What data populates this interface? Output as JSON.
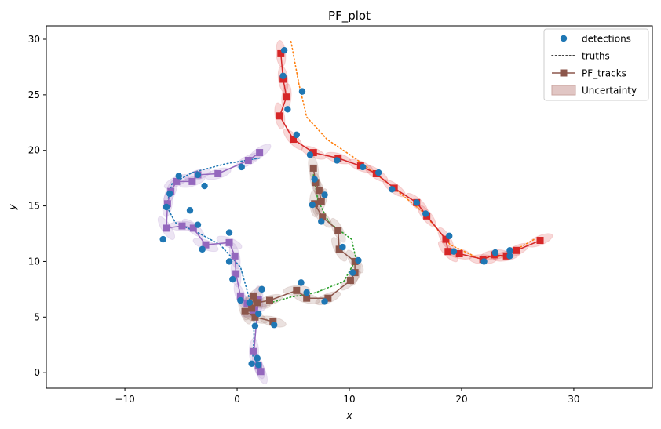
{
  "chart_data": {
    "type": "scatter",
    "title": "PF_plot",
    "xlabel": "x",
    "ylabel": "y",
    "xlim": [
      -17,
      37
    ],
    "ylim": [
      -1.4,
      31.2
    ],
    "xticks": [
      -10,
      0,
      10,
      20,
      30
    ],
    "yticks": [
      0,
      5,
      10,
      15,
      20,
      25,
      30
    ],
    "grid": false,
    "legend_position": "top-right",
    "legend": [
      {
        "label": "detections",
        "kind": "marker-dot",
        "color": "#1f77b4"
      },
      {
        "label": "truths",
        "kind": "dotted-line",
        "color": "#000000"
      },
      {
        "label": "PF_tracks",
        "kind": "line-square",
        "color": "#8c564b"
      },
      {
        "label": "Uncertainty",
        "kind": "patch",
        "color": "#d9b8b5"
      }
    ],
    "detections": [
      [
        4.2,
        29.0
      ],
      [
        4.1,
        26.7
      ],
      [
        5.8,
        25.3
      ],
      [
        4.5,
        23.7
      ],
      [
        5.3,
        21.4
      ],
      [
        6.5,
        19.6
      ],
      [
        8.9,
        19.1
      ],
      [
        11.2,
        18.5
      ],
      [
        12.6,
        18.0
      ],
      [
        13.8,
        16.5
      ],
      [
        16.0,
        15.3
      ],
      [
        16.8,
        14.3
      ],
      [
        18.9,
        12.3
      ],
      [
        19.3,
        10.9
      ],
      [
        22.0,
        10.0
      ],
      [
        23.0,
        10.8
      ],
      [
        24.3,
        10.5
      ],
      [
        24.3,
        11.0
      ],
      [
        0.4,
        18.5
      ],
      [
        -3.5,
        17.8
      ],
      [
        -5.2,
        17.7
      ],
      [
        -2.9,
        16.8
      ],
      [
        -6.0,
        16.1
      ],
      [
        -4.2,
        14.6
      ],
      [
        -6.3,
        14.9
      ],
      [
        -3.5,
        13.3
      ],
      [
        -6.6,
        12.0
      ],
      [
        -3.1,
        11.1
      ],
      [
        -0.7,
        12.6
      ],
      [
        -0.7,
        10.0
      ],
      [
        -0.4,
        8.4
      ],
      [
        0.3,
        6.5
      ],
      [
        1.1,
        6.3
      ],
      [
        2.2,
        7.5
      ],
      [
        1.9,
        5.3
      ],
      [
        1.6,
        4.2
      ],
      [
        3.3,
        4.3
      ],
      [
        1.8,
        1.3
      ],
      [
        1.3,
        0.8
      ],
      [
        1.9,
        0.7
      ],
      [
        6.9,
        17.4
      ],
      [
        7.8,
        16.0
      ],
      [
        6.7,
        15.1
      ],
      [
        7.5,
        13.6
      ],
      [
        9.4,
        11.3
      ],
      [
        10.8,
        10.1
      ],
      [
        10.3,
        9.0
      ],
      [
        5.7,
        8.1
      ],
      [
        6.2,
        7.2
      ],
      [
        7.8,
        6.4
      ]
    ],
    "series": [
      {
        "name": "",
        "role": "truth",
        "color": "#ff7f0e",
        "points": [
          [
            4.8,
            29.8
          ],
          [
            5.5,
            26.0
          ],
          [
            6.2,
            23.0
          ],
          [
            8.0,
            21.0
          ],
          [
            10.5,
            19.3
          ],
          [
            13.5,
            17.0
          ],
          [
            16.5,
            14.5
          ],
          [
            19.0,
            11.5
          ],
          [
            21.5,
            10.3
          ],
          [
            23.8,
            10.5
          ],
          [
            26.5,
            12.0
          ]
        ]
      },
      {
        "name": "",
        "role": "truth",
        "color": "#1f77b4",
        "points": [
          [
            2.0,
            19.3
          ],
          [
            -1.0,
            18.8
          ],
          [
            -4.0,
            18.0
          ],
          [
            -5.8,
            17.0
          ],
          [
            -6.3,
            15.0
          ],
          [
            -5.5,
            13.5
          ],
          [
            -3.5,
            12.6
          ],
          [
            -1.5,
            11.5
          ],
          [
            0.3,
            9.5
          ],
          [
            1.0,
            7.0
          ],
          [
            1.5,
            5.0
          ],
          [
            1.5,
            3.0
          ],
          [
            1.4,
            1.5
          ],
          [
            1.9,
            0.7
          ]
        ]
      },
      {
        "name": "",
        "role": "truth",
        "color": "#2ca02c",
        "points": [
          [
            6.8,
            17.8
          ],
          [
            7.2,
            15.5
          ],
          [
            8.2,
            13.5
          ],
          [
            10.2,
            12.0
          ],
          [
            10.6,
            10.2
          ],
          [
            9.5,
            8.2
          ],
          [
            7.0,
            7.2
          ],
          [
            4.8,
            6.8
          ],
          [
            3.0,
            6.3
          ]
        ]
      },
      {
        "name": "",
        "role": "track",
        "color": "#d62728",
        "points": [
          [
            3.9,
            28.7
          ],
          [
            4.1,
            26.4
          ],
          [
            4.4,
            24.8
          ],
          [
            3.8,
            23.1
          ],
          [
            5.0,
            21.0
          ],
          [
            6.8,
            19.8
          ],
          [
            9.0,
            19.3
          ],
          [
            11.0,
            18.6
          ],
          [
            12.4,
            17.9
          ],
          [
            14.0,
            16.6
          ],
          [
            16.0,
            15.3
          ],
          [
            16.9,
            14.1
          ],
          [
            18.6,
            12.0
          ],
          [
            18.8,
            10.9
          ],
          [
            19.8,
            10.7
          ],
          [
            21.9,
            10.2
          ],
          [
            22.9,
            10.6
          ],
          [
            24.0,
            10.5
          ],
          [
            24.9,
            11.0
          ],
          [
            27.0,
            11.9
          ]
        ]
      },
      {
        "name": "",
        "role": "track",
        "color": "#9467bd",
        "points": [
          [
            2.0,
            19.8
          ],
          [
            1.0,
            19.1
          ],
          [
            -1.7,
            17.9
          ],
          [
            -3.5,
            17.8
          ],
          [
            -4.0,
            17.2
          ],
          [
            -5.4,
            17.2
          ],
          [
            -5.9,
            16.3
          ],
          [
            -6.2,
            15.2
          ],
          [
            -6.3,
            13.0
          ],
          [
            -4.9,
            13.2
          ],
          [
            -3.9,
            13.0
          ],
          [
            -2.8,
            11.5
          ],
          [
            -0.7,
            11.7
          ],
          [
            -0.2,
            10.5
          ],
          [
            -0.1,
            8.9
          ],
          [
            0.3,
            6.9
          ],
          [
            0.9,
            6.2
          ],
          [
            1.5,
            5.6
          ],
          [
            1.9,
            6.6
          ],
          [
            1.5,
            1.9
          ],
          [
            1.9,
            0.6
          ],
          [
            2.1,
            0.1
          ]
        ]
      },
      {
        "name": "",
        "role": "track",
        "color": "#8c564b",
        "points": [
          [
            6.8,
            18.4
          ],
          [
            7.0,
            17.1
          ],
          [
            7.3,
            16.4
          ],
          [
            7.5,
            15.4
          ],
          [
            6.9,
            15.2
          ],
          [
            7.6,
            14.0
          ],
          [
            9.0,
            12.8
          ],
          [
            9.1,
            11.1
          ],
          [
            10.5,
            10.0
          ],
          [
            10.5,
            9.0
          ],
          [
            10.1,
            8.3
          ],
          [
            8.1,
            6.7
          ],
          [
            6.2,
            6.7
          ],
          [
            5.3,
            7.4
          ],
          [
            2.9,
            6.5
          ],
          [
            1.8,
            6.3
          ],
          [
            1.5,
            6.9
          ],
          [
            1.3,
            5.8
          ],
          [
            0.7,
            5.5
          ],
          [
            1.6,
            5.0
          ],
          [
            3.2,
            4.6
          ]
        ]
      }
    ]
  },
  "icons": {
    "detection": "filled-circle",
    "track": "filled-square"
  }
}
